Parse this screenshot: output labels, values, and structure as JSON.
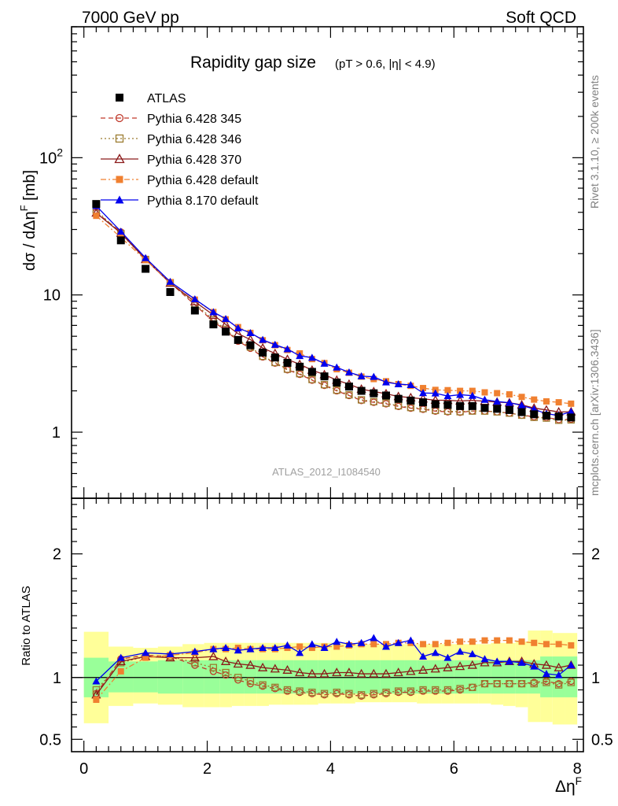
{
  "header": {
    "left": "7000 GeV pp",
    "right": "Soft QCD"
  },
  "side_labels": {
    "rivet": "Rivet 3.1.10, ≥ 200k events",
    "mcplots": "mcplots.cern.ch [arXiv:1306.3436]"
  },
  "plot_title": {
    "main": "Rapidity gap size",
    "cut": "(pT > 0.6, |η| < 4.9)"
  },
  "watermark": "ATLAS_2012_I1084540",
  "ylabel_main": "dσ / dΔηF [mb]",
  "ylabel_ratio": "Ratio to ATLAS",
  "xlabel": "ΔηF",
  "colors": {
    "atlas": "#000000",
    "p345": "#c0392b",
    "p346": "#9a7b2e",
    "p370": "#8b1a1a",
    "p6default": "#f08030",
    "p8default": "#0000ee",
    "band_inner": "#99ff99",
    "band_outer": "#ffff99"
  },
  "chart_data": {
    "type": "scatter",
    "x_axis": {
      "range": [
        -0.2,
        8.1
      ],
      "ticks": [
        0,
        2,
        4,
        6,
        8
      ],
      "label": "ΔηF"
    },
    "main_axis": {
      "scale": "log",
      "range": [
        0.33,
        900
      ],
      "ticks": [
        1,
        10,
        100
      ],
      "tick_labels": [
        "1",
        "10",
        "10^2"
      ]
    },
    "ratio_axis": {
      "range": [
        0.4,
        2.45
      ],
      "ticks": [
        0.5,
        1,
        2
      ],
      "tick_labels": [
        "0.5",
        "1",
        "2"
      ]
    },
    "x": [
      0.2,
      0.6,
      1.0,
      1.4,
      1.8,
      2.1,
      2.3,
      2.5,
      2.7,
      2.9,
      3.1,
      3.3,
      3.5,
      3.7,
      3.9,
      4.1,
      4.3,
      4.5,
      4.7,
      4.9,
      5.1,
      5.3,
      5.5,
      5.7,
      5.9,
      6.1,
      6.3,
      6.5,
      6.7,
      6.9,
      7.1,
      7.3,
      7.5,
      7.7,
      7.9
    ],
    "atlas": [
      46,
      25,
      15.5,
      10.5,
      7.7,
      6.1,
      5.4,
      4.7,
      4.3,
      3.8,
      3.5,
      3.2,
      3.0,
      2.75,
      2.55,
      2.3,
      2.15,
      2.0,
      1.92,
      1.85,
      1.75,
      1.7,
      1.65,
      1.6,
      1.58,
      1.55,
      1.55,
      1.5,
      1.48,
      1.45,
      1.4,
      1.35,
      1.32,
      1.3,
      1.28
    ],
    "atlas_band": {
      "inner_lo": [
        0.84,
        0.88,
        0.88,
        0.87,
        0.87,
        0.87,
        0.87,
        0.87,
        0.87,
        0.87,
        0.87,
        0.87,
        0.87,
        0.87,
        0.87,
        0.87,
        0.87,
        0.87,
        0.87,
        0.87,
        0.87,
        0.87,
        0.87,
        0.87,
        0.87,
        0.87,
        0.87,
        0.87,
        0.87,
        0.87,
        0.87,
        0.87,
        0.84,
        0.84,
        0.84
      ],
      "inner_hi": [
        1.16,
        1.13,
        1.13,
        1.14,
        1.14,
        1.14,
        1.14,
        1.14,
        1.14,
        1.14,
        1.14,
        1.14,
        1.14,
        1.14,
        1.14,
        1.14,
        1.14,
        1.14,
        1.14,
        1.14,
        1.14,
        1.14,
        1.14,
        1.14,
        1.14,
        1.14,
        1.14,
        1.14,
        1.14,
        1.14,
        1.14,
        1.14,
        1.17,
        1.17,
        1.17
      ],
      "outer_lo": [
        0.63,
        0.77,
        0.79,
        0.78,
        0.76,
        0.76,
        0.76,
        0.77,
        0.77,
        0.77,
        0.78,
        0.78,
        0.78,
        0.78,
        0.79,
        0.79,
        0.79,
        0.8,
        0.8,
        0.8,
        0.8,
        0.8,
        0.79,
        0.79,
        0.79,
        0.79,
        0.79,
        0.79,
        0.78,
        0.77,
        0.76,
        0.64,
        0.64,
        0.62,
        0.62
      ],
      "outer_hi": [
        1.37,
        1.25,
        1.24,
        1.25,
        1.27,
        1.28,
        1.28,
        1.28,
        1.28,
        1.28,
        1.28,
        1.28,
        1.28,
        1.28,
        1.28,
        1.28,
        1.28,
        1.27,
        1.27,
        1.27,
        1.27,
        1.27,
        1.27,
        1.27,
        1.27,
        1.27,
        1.27,
        1.27,
        1.28,
        1.28,
        1.29,
        1.38,
        1.38,
        1.36,
        1.36
      ]
    },
    "series": [
      {
        "name": "ATLAS",
        "color_key": "atlas",
        "marker": "square-filled",
        "line": "none",
        "ratio": null
      },
      {
        "name": "Pythia 6.428 345",
        "color_key": "p345",
        "marker": "circle-open",
        "line": "dashed",
        "ratio": [
          0.87,
          1.15,
          1.18,
          1.17,
          1.1,
          1.05,
          1.02,
          0.98,
          0.95,
          0.93,
          0.91,
          0.89,
          0.88,
          0.87,
          0.86,
          0.87,
          0.86,
          0.85,
          0.86,
          0.87,
          0.88,
          0.88,
          0.89,
          0.89,
          0.89,
          0.9,
          0.92,
          0.95,
          0.95,
          0.95,
          0.95,
          0.96,
          0.97,
          0.95,
          0.97
        ]
      },
      {
        "name": "Pythia 6.428 346",
        "color_key": "p346",
        "marker": "square-open",
        "line": "dotted",
        "ratio": [
          0.9,
          1.12,
          1.17,
          1.17,
          1.12,
          1.08,
          1.04,
          1.0,
          0.97,
          0.94,
          0.92,
          0.9,
          0.89,
          0.88,
          0.87,
          0.88,
          0.87,
          0.86,
          0.87,
          0.88,
          0.89,
          0.89,
          0.9,
          0.9,
          0.9,
          0.91,
          0.92,
          0.95,
          0.95,
          0.95,
          0.95,
          0.95,
          0.96,
          0.94,
          0.96
        ]
      },
      {
        "name": "Pythia 6.428 370",
        "color_key": "p370",
        "marker": "triangle-open",
        "line": "solid",
        "ratio": [
          0.86,
          1.13,
          1.17,
          1.16,
          1.16,
          1.17,
          1.13,
          1.11,
          1.1,
          1.08,
          1.07,
          1.06,
          1.04,
          1.03,
          1.03,
          1.04,
          1.04,
          1.03,
          1.03,
          1.03,
          1.04,
          1.05,
          1.06,
          1.07,
          1.08,
          1.09,
          1.1,
          1.12,
          1.12,
          1.13,
          1.13,
          1.11,
          1.1,
          1.08,
          1.1
        ]
      },
      {
        "name": "Pythia 6.428 default",
        "color_key": "p6default",
        "marker": "square-filled",
        "line": "dashdot",
        "ratio": [
          0.82,
          1.05,
          1.16,
          1.18,
          1.2,
          1.23,
          1.23,
          1.24,
          1.23,
          1.23,
          1.23,
          1.24,
          1.25,
          1.24,
          1.25,
          1.25,
          1.26,
          1.27,
          1.27,
          1.27,
          1.28,
          1.28,
          1.27,
          1.27,
          1.28,
          1.29,
          1.29,
          1.3,
          1.3,
          1.3,
          1.29,
          1.28,
          1.27,
          1.27,
          1.26
        ]
      },
      {
        "name": "Pythia 8.170 default",
        "color_key": "p8default",
        "marker": "triangle-filled",
        "line": "solid",
        "ratio": [
          0.97,
          1.16,
          1.2,
          1.19,
          1.21,
          1.23,
          1.24,
          1.22,
          1.23,
          1.24,
          1.24,
          1.26,
          1.2,
          1.27,
          1.24,
          1.29,
          1.27,
          1.28,
          1.32,
          1.25,
          1.28,
          1.3,
          1.17,
          1.2,
          1.16,
          1.21,
          1.19,
          1.15,
          1.13,
          1.13,
          1.12,
          1.09,
          1.03,
          1.02,
          1.1
        ]
      }
    ]
  }
}
